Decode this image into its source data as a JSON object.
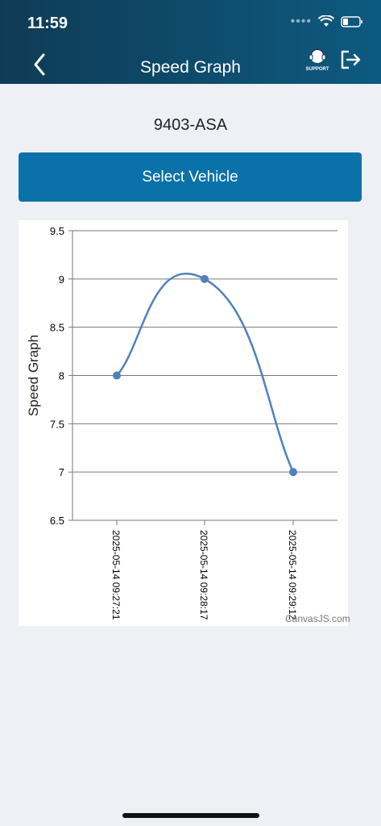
{
  "status_bar": {
    "time": "11:59"
  },
  "header": {
    "title": "Speed Graph",
    "support_label": "SUPPORT"
  },
  "vehicle": {
    "id": "9403-ASA"
  },
  "select_button": {
    "label": "Select Vehicle"
  },
  "chart_data": {
    "type": "line",
    "x": [
      "2025-05-14 09:27:21",
      "2025-05-14 09:28:17",
      "2025-05-14 09:29:12"
    ],
    "values": [
      8,
      9,
      7
    ],
    "ylabel": "Speed Graph",
    "xlabel": "",
    "ylim": [
      6.5,
      9.5
    ],
    "yticks": [
      "9.5",
      "9",
      "8.5",
      "8",
      "7.5",
      "7",
      "6.5"
    ],
    "grid": true,
    "line_color": "#4f81bc",
    "smooth": true
  },
  "chart_credit": "CanvasJS.com"
}
